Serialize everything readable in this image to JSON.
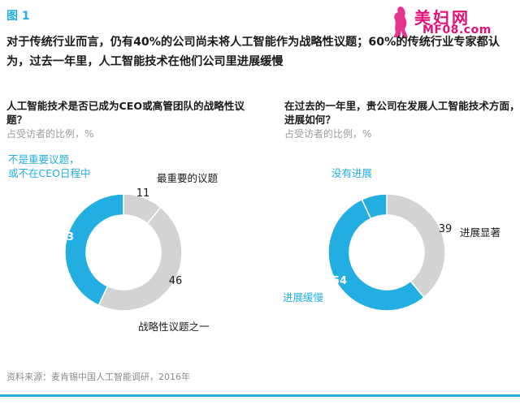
{
  "figure_label": "图 1",
  "watermark": {
    "title": "美妇网",
    "url": "MF08.com"
  },
  "headline": "对于传统行业而言，仍有40%的公司尚未将人工智能作为战略性议题；60%的传统行业专家都认为，过去一年里，人工智能技术在他们公司里进展缓慢",
  "source": "资料来源：麦肯锡中国人工智能调研，2016年",
  "colors": {
    "blue": "#22aee0",
    "gray": "#d3d3d3",
    "accent": "#22aee0"
  },
  "chart_data": [
    {
      "type": "pie",
      "title": "人工智能技术是否已成为CEO或高管团队的战略性议题？",
      "subtitle": "占受访者的比例，%",
      "labels": [
        "最重要的议题",
        "战略性议题之一",
        "不是重要议题，或不在CEO日程中"
      ],
      "label_lines": [
        [
          "最重要的议题"
        ],
        [
          "战略性议题之一"
        ],
        [
          "不是重要议题，",
          "或不在CEO日程中"
        ]
      ],
      "values": [
        11,
        46,
        43
      ],
      "colors": [
        "#d3d3d3",
        "#d3d3d3",
        "#22aee0"
      ]
    },
    {
      "type": "pie",
      "title": "在过去的一年里，贵公司在发展人工智能技术方面，进展如何？",
      "subtitle": "占受访者的比例，%",
      "labels": [
        "进展显著",
        "进展缓慢",
        "没有进展"
      ],
      "label_lines": [
        [
          "进展显著"
        ],
        [
          "进展缓慢"
        ],
        [
          "没有进展"
        ]
      ],
      "values": [
        39,
        54,
        7
      ],
      "colors": [
        "#d3d3d3",
        "#22aee0",
        "#22aee0"
      ]
    }
  ]
}
